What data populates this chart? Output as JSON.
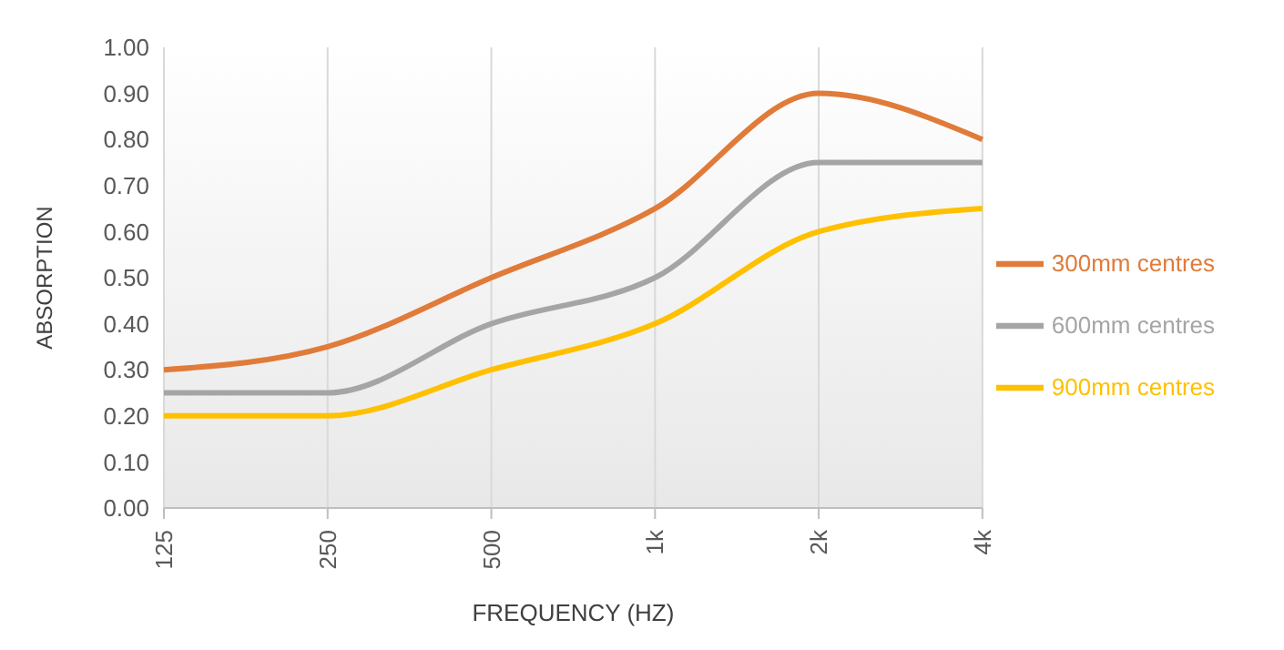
{
  "chart_data": {
    "type": "line",
    "xlabel": "FREQUENCY (HZ)",
    "ylabel": "ABSORPTION",
    "categories": [
      "125",
      "250",
      "500",
      "1k",
      "2k",
      "4k"
    ],
    "series": [
      {
        "name": "300mm centres",
        "color": "#e07b39",
        "values": [
          0.3,
          0.35,
          0.5,
          0.65,
          0.9,
          0.8
        ]
      },
      {
        "name": "600mm centres",
        "color": "#a5a5a5",
        "values": [
          0.25,
          0.25,
          0.4,
          0.5,
          0.75,
          0.75
        ]
      },
      {
        "name": "900mm centres",
        "color": "#ffc000",
        "values": [
          0.2,
          0.2,
          0.3,
          0.4,
          0.6,
          0.65
        ]
      }
    ],
    "ylim": [
      0,
      1
    ],
    "yticks": [
      {
        "value": 0,
        "label": "0.00"
      },
      {
        "value": 0.1,
        "label": "0.10"
      },
      {
        "value": 0.2,
        "label": "0.20"
      },
      {
        "value": 0.3,
        "label": "0.30"
      },
      {
        "value": 0.4,
        "label": "0.40"
      },
      {
        "value": 0.5,
        "label": "0.50"
      },
      {
        "value": 0.6,
        "label": "0.60"
      },
      {
        "value": 0.7,
        "label": "0.70"
      },
      {
        "value": 0.8,
        "label": "0.80"
      },
      {
        "value": 0.9,
        "label": "0.90"
      },
      {
        "value": 1,
        "label": "1.00"
      }
    ],
    "grid": "x",
    "legend": "right",
    "marker": "none",
    "line_style": "solid"
  }
}
